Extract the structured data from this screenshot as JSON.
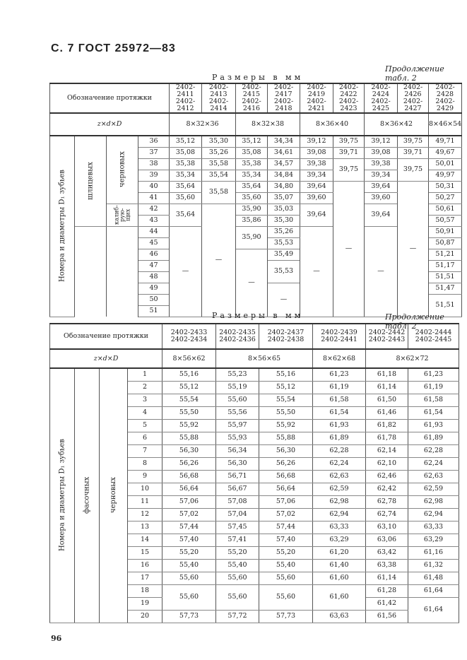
{
  "header": {
    "title": "С. 7 ГОСТ 25972—83",
    "page_number": "96"
  },
  "top": {
    "units": "Размеры в мм",
    "continuation": "Продолжение табл. 2",
    "designation_label": "Обозначение протяжки",
    "designations": [
      "2402-2411\n2402-2412",
      "2402-2413\n2402-2414",
      "2402-2415\n2402-2416",
      "2402-2417\n2402-2418",
      "2402-2419\n2402-2421",
      "2402-2422\n2402-2423",
      "2402-2424\n2402-2425",
      "2402-2426\n2402-2427",
      "2402-2428\n2402-2429"
    ],
    "size_label": "z×d×D",
    "sizes": [
      {
        "v": "8×32×36",
        "span": 2
      },
      {
        "v": "8×32×38",
        "span": 2
      },
      {
        "v": "8×36×40",
        "span": 2
      },
      {
        "v": "8×36×42",
        "span": 2
      },
      {
        "v": "8×46×54",
        "span": 1
      }
    ],
    "row_label": "Номера и диаметры D₁ зубьев",
    "group1": [
      {
        "v": "шлицевых",
        "rs": 8
      },
      {
        "v": "",
        "rs": 8
      }
    ],
    "group2": [
      {
        "v": "черновых",
        "rs": 6
      },
      {
        "v": "калиб-\nрую-\nщих",
        "rs": 2
      },
      {
        "v": "",
        "rs": 8
      }
    ],
    "numbers": [
      "36",
      "37",
      "38",
      "39",
      "40",
      "41",
      "42",
      "43",
      "44",
      "45",
      "46",
      "47",
      "48",
      "49",
      "50",
      "51"
    ],
    "columns": [
      [
        {
          "v": "35,12"
        },
        {
          "v": "35,08"
        },
        {
          "v": "35,38"
        },
        {
          "v": "35,34"
        },
        {
          "v": "35,64"
        },
        {
          "v": "35,60"
        },
        {
          "v": "35,64",
          "rs": 2
        },
        {
          "v": "—",
          "rs": 8
        }
      ],
      [
        {
          "v": "35,30"
        },
        {
          "v": "35,26"
        },
        {
          "v": "35,58"
        },
        {
          "v": "35,54"
        },
        {
          "v": "35,58",
          "rs": 2
        },
        {
          "v": "—",
          "rs": 10
        }
      ],
      [
        {
          "v": "35,12"
        },
        {
          "v": "35,08"
        },
        {
          "v": "35,38"
        },
        {
          "v": "35,34"
        },
        {
          "v": "35,64"
        },
        {
          "v": "35,60"
        },
        {
          "v": "35,90"
        },
        {
          "v": "35,86"
        },
        {
          "v": "35,90",
          "rs": 2
        },
        {
          "v": "—",
          "rs": 6
        }
      ],
      [
        {
          "v": "34,34"
        },
        {
          "v": "34,61"
        },
        {
          "v": "34,57"
        },
        {
          "v": "34,84"
        },
        {
          "v": "34,80"
        },
        {
          "v": "35,07"
        },
        {
          "v": "35,03"
        },
        {
          "v": "35,30"
        },
        {
          "v": "35,26"
        },
        {
          "v": "35,53"
        },
        {
          "v": "35,49"
        },
        {
          "v": "35,53",
          "rs": 2
        },
        {
          "v": "—",
          "rs": 3
        }
      ],
      [
        {
          "v": "39,12"
        },
        {
          "v": "39,08"
        },
        {
          "v": "39,38"
        },
        {
          "v": "39,34"
        },
        {
          "v": "39,64"
        },
        {
          "v": "39,60"
        },
        {
          "v": "39,64",
          "rs": 2
        },
        {
          "v": "—",
          "rs": 8
        }
      ],
      [
        {
          "v": "39,75"
        },
        {
          "v": "39,71"
        },
        {
          "v": "39,75",
          "rs": 2
        },
        {
          "v": "—",
          "rs": 12
        }
      ],
      [
        {
          "v": "39,12"
        },
        {
          "v": "39,08"
        },
        {
          "v": "39,38"
        },
        {
          "v": "39,34"
        },
        {
          "v": "39,64"
        },
        {
          "v": "39,60"
        },
        {
          "v": "39,64",
          "rs": 2
        },
        {
          "v": "—",
          "rs": 8
        }
      ],
      [
        {
          "v": "39,75"
        },
        {
          "v": "39,71"
        },
        {
          "v": "39,75",
          "rs": 2
        },
        {
          "v": "—",
          "rs": 12
        }
      ],
      [
        {
          "v": "49,71"
        },
        {
          "v": "49,67"
        },
        {
          "v": "50,01"
        },
        {
          "v": "49,97"
        },
        {
          "v": "50,31"
        },
        {
          "v": "50,27"
        },
        {
          "v": "50,61"
        },
        {
          "v": "50,57"
        },
        {
          "v": "50,91"
        },
        {
          "v": "50,87"
        },
        {
          "v": "51,21"
        },
        {
          "v": "51,17"
        },
        {
          "v": "51,51"
        },
        {
          "v": "51,47"
        },
        {
          "v": "51,51",
          "rs": 2
        }
      ]
    ]
  },
  "bottom": {
    "units": "Размеры в мм",
    "continuation": "Продолжение табл. 2",
    "designation_label": "Обозначение протяжки",
    "designations": [
      "2402-2433\n2402-2434",
      "2402-2435\n2402-2436",
      "2402-2437\n2402-2438",
      "2402-2439\n2402-2441",
      "2402-2442\n2402-2443",
      "2402-2444\n2402-2445"
    ],
    "size_label": "z×d×D",
    "sizes": [
      {
        "v": "8×56×62",
        "span": 1
      },
      {
        "v": "8×56×65",
        "span": 2
      },
      {
        "v": "8×62×68",
        "span": 1
      },
      {
        "v": "8×62×72",
        "span": 2
      }
    ],
    "row_label": "Номера и диаметры D₁ зубьев",
    "group1": [
      {
        "v": "фасочных",
        "rs": 20
      }
    ],
    "group2": [
      {
        "v": "черновых",
        "rs": 20
      }
    ],
    "numbers": [
      "1",
      "2",
      "3",
      "4",
      "5",
      "6",
      "7",
      "8",
      "9",
      "10",
      "11",
      "12",
      "13",
      "14",
      "15",
      "16",
      "17",
      "18",
      "19",
      "20"
    ],
    "columns": [
      [
        {
          "v": "55,16"
        },
        {
          "v": "55,12"
        },
        {
          "v": "55,54"
        },
        {
          "v": "55,50"
        },
        {
          "v": "55,92"
        },
        {
          "v": "55,88"
        },
        {
          "v": "56,30"
        },
        {
          "v": "56,26"
        },
        {
          "v": "56,68"
        },
        {
          "v": "56,64"
        },
        {
          "v": "57,06"
        },
        {
          "v": "57,02"
        },
        {
          "v": "57,44"
        },
        {
          "v": "57,40"
        },
        {
          "v": "55,20"
        },
        {
          "v": "55,40"
        },
        {
          "v": "55,60"
        },
        {
          "v": "55,60",
          "rs": 2
        },
        {
          "v": "57,73"
        }
      ],
      [
        {
          "v": "55,23"
        },
        {
          "v": "55,19"
        },
        {
          "v": "55,60"
        },
        {
          "v": "55,56"
        },
        {
          "v": "55,97"
        },
        {
          "v": "55,93"
        },
        {
          "v": "56,34"
        },
        {
          "v": "56,30"
        },
        {
          "v": "56,71"
        },
        {
          "v": "56,67"
        },
        {
          "v": "57,08"
        },
        {
          "v": "57,04"
        },
        {
          "v": "57,45"
        },
        {
          "v": "57,41"
        },
        {
          "v": "55,20"
        },
        {
          "v": "55,40"
        },
        {
          "v": "55,60"
        },
        {
          "v": "55,60",
          "rs": 2
        },
        {
          "v": "57,72"
        }
      ],
      [
        {
          "v": "55,16"
        },
        {
          "v": "55,12"
        },
        {
          "v": "55,54"
        },
        {
          "v": "55,50"
        },
        {
          "v": "55,92"
        },
        {
          "v": "55,88"
        },
        {
          "v": "56,30"
        },
        {
          "v": "56,26"
        },
        {
          "v": "56,68"
        },
        {
          "v": "56,64"
        },
        {
          "v": "57,06"
        },
        {
          "v": "57,02"
        },
        {
          "v": "57,44"
        },
        {
          "v": "57,40"
        },
        {
          "v": "55,20"
        },
        {
          "v": "55,40"
        },
        {
          "v": "55,60"
        },
        {
          "v": "55,60",
          "rs": 2
        },
        {
          "v": "57,73"
        }
      ],
      [
        {
          "v": "61,23"
        },
        {
          "v": "61,19"
        },
        {
          "v": "61,58"
        },
        {
          "v": "61,54"
        },
        {
          "v": "61,93"
        },
        {
          "v": "61,89"
        },
        {
          "v": "62,28"
        },
        {
          "v": "62,24"
        },
        {
          "v": "62,63"
        },
        {
          "v": "62,59"
        },
        {
          "v": "62,98"
        },
        {
          "v": "62,94"
        },
        {
          "v": "63,33"
        },
        {
          "v": "63,29"
        },
        {
          "v": "61,20"
        },
        {
          "v": "61,40"
        },
        {
          "v": "61,60"
        },
        {
          "v": "61,60",
          "rs": 2
        },
        {
          "v": "63,63"
        }
      ],
      [
        {
          "v": "61,18"
        },
        {
          "v": "61,14"
        },
        {
          "v": "61,50"
        },
        {
          "v": "61,46"
        },
        {
          "v": "61,82"
        },
        {
          "v": "61,78"
        },
        {
          "v": "62,14"
        },
        {
          "v": "62,10"
        },
        {
          "v": "62,46"
        },
        {
          "v": "62,42"
        },
        {
          "v": "62,78"
        },
        {
          "v": "62,74"
        },
        {
          "v": "63,10"
        },
        {
          "v": "63,06"
        },
        {
          "v": "63,42"
        },
        {
          "v": "63,38"
        },
        {
          "v": "61,14"
        },
        {
          "v": "61,28"
        },
        {
          "v": "61,42"
        },
        {
          "v": "61,56"
        }
      ],
      [
        {
          "v": "61,23"
        },
        {
          "v": "61,19"
        },
        {
          "v": "61,58"
        },
        {
          "v": "61,54"
        },
        {
          "v": "61,93"
        },
        {
          "v": "61,89"
        },
        {
          "v": "62,28"
        },
        {
          "v": "62,24"
        },
        {
          "v": "62,63"
        },
        {
          "v": "62,59"
        },
        {
          "v": "62,98"
        },
        {
          "v": "62,94"
        },
        {
          "v": "63,33"
        },
        {
          "v": "63,29"
        },
        {
          "v": "61,16"
        },
        {
          "v": "61,32"
        },
        {
          "v": "61,48"
        },
        {
          "v": "61,64"
        },
        {
          "v": "61,64",
          "rs": 2
        }
      ]
    ]
  }
}
